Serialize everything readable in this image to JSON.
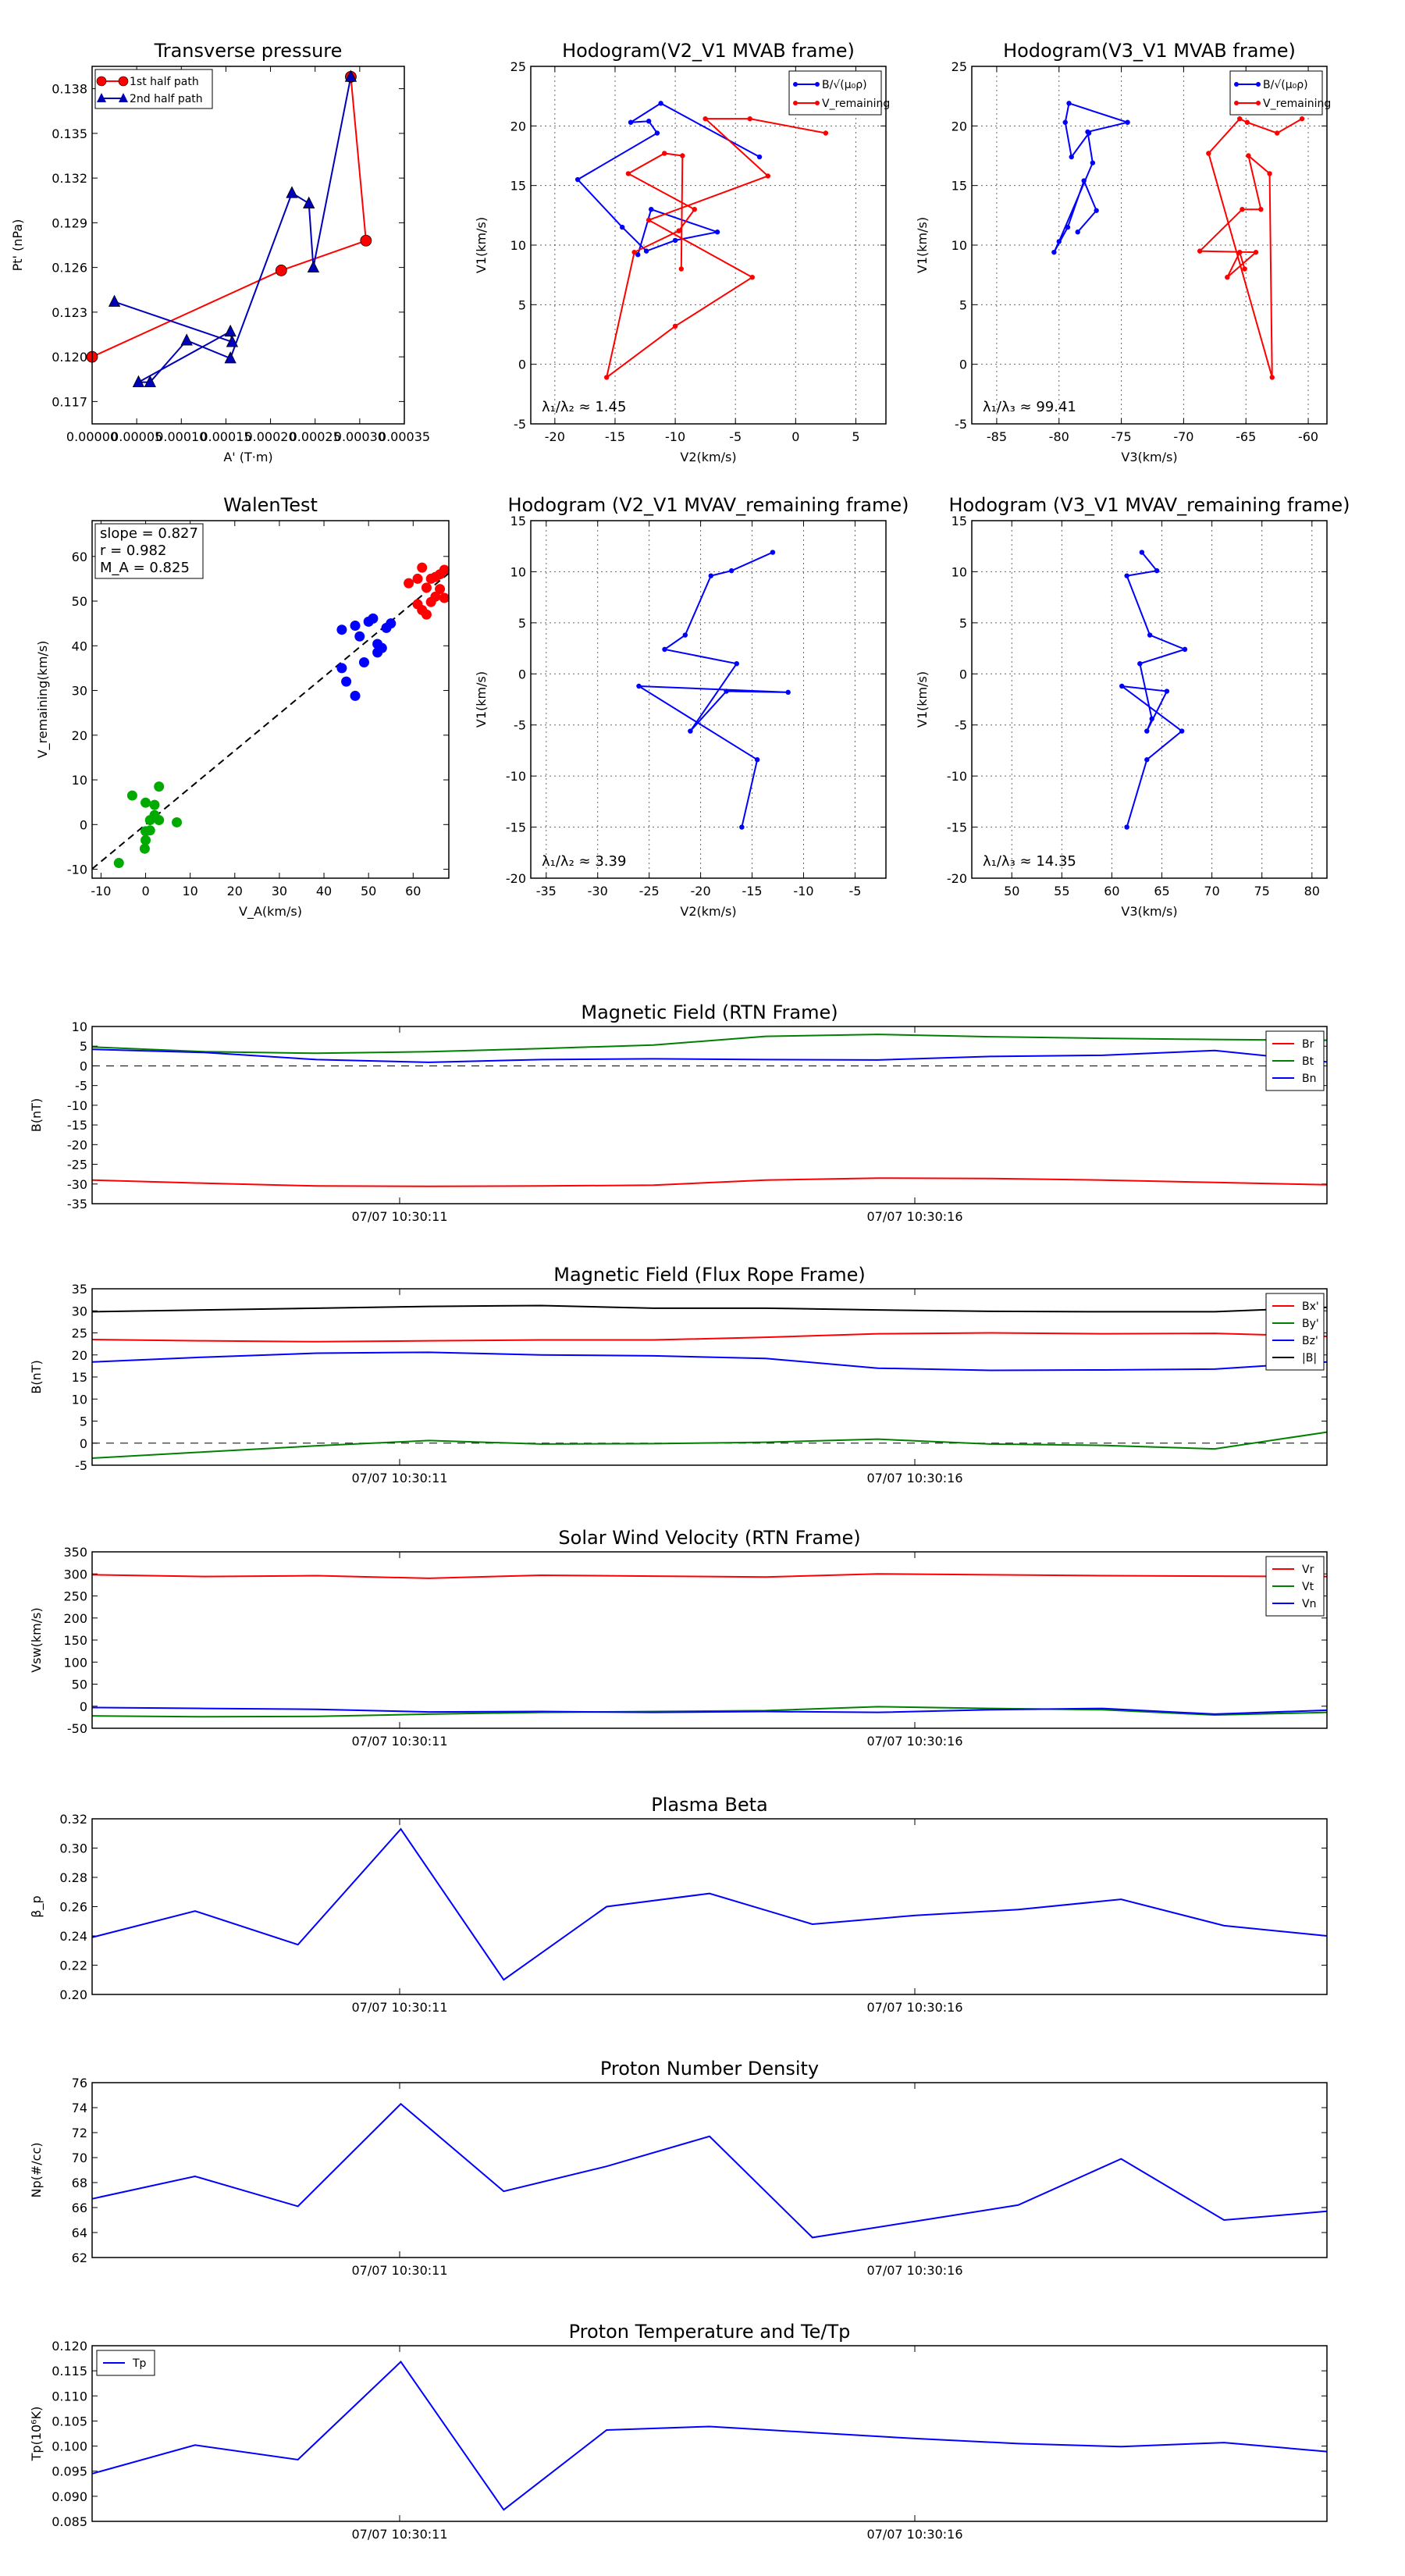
{
  "chart_data": [
    {
      "id": "pt",
      "type": "line",
      "title": "Transverse pressure",
      "xlabel": "A' (T·m)",
      "ylabel": "Pt' (nPa)",
      "xlim": [
        0,
        0.00035
      ],
      "ylim": [
        0.1155,
        0.1395
      ],
      "xticks": [
        0,
        5e-05,
        0.0001,
        0.00015,
        0.0002,
        0.00025,
        0.0003,
        0.00035
      ],
      "xticklabels": [
        "0.00000",
        "0.00005",
        "0.00010",
        "0.00015",
        "0.00020",
        "0.00025",
        "0.00030",
        "0.00035"
      ],
      "yticks": [
        0.117,
        0.12,
        0.123,
        0.126,
        0.129,
        0.132,
        0.135,
        0.138
      ],
      "yticklabels": [
        "0.117",
        "0.120",
        "0.123",
        "0.126",
        "0.129",
        "0.132",
        "0.135",
        "0.138"
      ],
      "legend_position": "top-left",
      "series": [
        {
          "name": "1st half path",
          "color": "#ff0000",
          "marker": "circle",
          "x": [
            0.0,
            0.000212,
            0.000307,
            0.00029
          ],
          "y": [
            0.12,
            0.1258,
            0.1278,
            0.1388
          ]
        },
        {
          "name": "2nd half path",
          "color": "#0000bb",
          "marker": "triangle",
          "x": [
            0.00029,
            0.000248,
            0.000243,
            0.000224,
            0.000155,
            0.000106,
            6.5e-05,
            5.2e-05,
            0.000155,
            0.000157,
            2.5e-05
          ],
          "y": [
            0.1388,
            0.126,
            0.1303,
            0.131,
            0.1199,
            0.1211,
            0.1183,
            0.1183,
            0.1217,
            0.121,
            0.1237
          ]
        }
      ]
    },
    {
      "id": "h1",
      "type": "line",
      "title": "Hodogram(V2_V1 MVAB frame)",
      "xlabel": "V2(km/s)",
      "ylabel": "V1(km/s)",
      "xlim": [
        -22,
        7.5
      ],
      "ylim": [
        -5,
        25
      ],
      "xticks": [
        -20,
        -15,
        -10,
        -5,
        0,
        5
      ],
      "yticks": [
        -5,
        0,
        5,
        10,
        15,
        20,
        25
      ],
      "legend_position": "top-right",
      "legend": [
        "B/√(μ₀ρ)",
        "V_remaining"
      ],
      "annotation": "λ₁/λ₂ ≈ 1.45",
      "series": [
        {
          "name": "B/√(μ₀ρ)",
          "color": "#0000ff",
          "x": [
            -3.0,
            -11.2,
            -13.7,
            -12.2,
            -11.5,
            -18.1,
            -14.4,
            -12.4,
            -10.0,
            -6.5,
            -12.0,
            -13.1
          ],
          "y": [
            17.4,
            21.9,
            20.3,
            20.4,
            19.4,
            15.5,
            11.5,
            9.5,
            10.4,
            11.1,
            13.0,
            9.2
          ]
        },
        {
          "name": "V_remaining",
          "color": "#ff0000",
          "x": [
            -9.5,
            -9.4,
            -10.9,
            -13.9,
            -8.4,
            -9.7,
            -13.4,
            -15.7,
            -10.0,
            -3.6,
            -12.2,
            -2.3,
            -7.5,
            -3.8,
            2.5
          ],
          "y": [
            8.0,
            17.5,
            17.7,
            16.0,
            13.0,
            11.2,
            9.4,
            -1.1,
            3.2,
            7.3,
            12.1,
            15.8,
            20.6,
            20.6,
            19.4
          ]
        }
      ]
    },
    {
      "id": "h2",
      "type": "line",
      "title": "Hodogram(V3_V1 MVAB frame)",
      "xlabel": "V3(km/s)",
      "ylabel": "V1(km/s)",
      "xlim": [
        -87,
        -58.5
      ],
      "ylim": [
        -5,
        25
      ],
      "xticks": [
        -85,
        -80,
        -75,
        -70,
        -65,
        -60
      ],
      "yticks": [
        -5,
        0,
        5,
        10,
        15,
        20,
        25
      ],
      "legend_position": "top-right",
      "legend": [
        "B/√(μ₀ρ)",
        "V_remaining"
      ],
      "annotation": "λ₁/λ₃ ≈ 99.41",
      "series": [
        {
          "name": "B/√(μ₀ρ)",
          "color": "#0000ff",
          "x": [
            -78.5,
            -77.0,
            -78.0,
            -79.3,
            -80.4,
            -80.0,
            -77.3,
            -77.7,
            -74.5,
            -79.2,
            -79.5,
            -79.0,
            -77.6
          ],
          "y": [
            11.1,
            12.9,
            15.4,
            11.5,
            9.4,
            10.3,
            16.9,
            19.5,
            20.3,
            21.9,
            20.3,
            17.4,
            19.4
          ]
        },
        {
          "name": "V_remaining",
          "color": "#ff0000",
          "x": [
            -65.1,
            -65.5,
            -66.5,
            -64.2,
            -68.7,
            -65.3,
            -63.8,
            -64.8,
            -63.1,
            -62.9,
            -68.0,
            -65.5,
            -64.9,
            -62.5,
            -60.5
          ],
          "y": [
            8.0,
            9.4,
            7.3,
            9.4,
            9.5,
            13.0,
            13.0,
            17.5,
            16.0,
            -1.1,
            17.7,
            20.6,
            20.3,
            19.4,
            20.6
          ]
        }
      ]
    },
    {
      "id": "walen",
      "type": "scatter",
      "title": "WalenTest",
      "xlabel": "V_A(km/s)",
      "ylabel": "V_remaining(km/s)",
      "xlim": [
        -12,
        68
      ],
      "ylim": [
        -12,
        68
      ],
      "xticks": [
        -10,
        0,
        10,
        20,
        30,
        40,
        50,
        60
      ],
      "yticks": [
        -10,
        0,
        10,
        20,
        30,
        40,
        50,
        60
      ],
      "annotation_lines": [
        "slope = 0.827",
        "r = 0.982",
        "M_A = 0.825"
      ],
      "fit_slope": 0.827,
      "series": [
        {
          "name": "green",
          "color": "#00aa00",
          "x": [
            -3,
            3,
            7,
            0,
            2,
            1,
            1,
            2,
            0,
            -0.2,
            -6,
            0,
            3
          ],
          "y": [
            6.5,
            8.5,
            0.5,
            4.9,
            2.1,
            1.0,
            -1.3,
            4.4,
            -1.5,
            -5.4,
            -8.6,
            -3.5,
            1.0
          ]
        },
        {
          "name": "blue",
          "color": "#0000ff",
          "x": [
            44,
            47,
            48,
            50,
            51,
            52,
            53,
            54,
            55,
            44,
            45,
            47,
            49,
            52
          ],
          "y": [
            43.6,
            44.5,
            42.1,
            45.4,
            46.1,
            38.5,
            39.5,
            44.0,
            45.0,
            35.0,
            32.0,
            28.8,
            36.3,
            40.4
          ]
        },
        {
          "name": "red",
          "color": "#ff0000",
          "x": [
            59,
            61,
            62,
            63,
            64,
            65,
            66,
            67,
            62,
            63,
            64,
            65,
            66,
            67,
            61
          ],
          "y": [
            54.0,
            55.0,
            57.5,
            53.0,
            55.0,
            55.4,
            56.0,
            57.0,
            48.0,
            47.0,
            49.8,
            51.0,
            52.7,
            50.7,
            49.3
          ]
        }
      ]
    },
    {
      "id": "h3",
      "type": "line",
      "title": "Hodogram (V2_V1 MVAV_remaining frame)",
      "xlabel": "V2(km/s)",
      "ylabel": "V1(km/s)",
      "xlim": [
        -36.5,
        -2
      ],
      "ylim": [
        -20,
        15
      ],
      "xticks": [
        -35,
        -30,
        -25,
        -20,
        -15,
        -10,
        -5
      ],
      "yticks": [
        -20,
        -15,
        -10,
        -5,
        0,
        5,
        10,
        15
      ],
      "annotation": "λ₁/λ₂ ≈ 3.39",
      "series": [
        {
          "name": "B",
          "color": "#0000ff",
          "x": [
            -13.0,
            -17.0,
            -19.0,
            -21.5,
            -23.5,
            -16.5,
            -21.0,
            -17.5,
            -11.5,
            -26.0,
            -14.5,
            -16.0
          ],
          "y": [
            11.9,
            10.1,
            9.6,
            3.8,
            2.4,
            1.0,
            -5.6,
            -1.7,
            -1.8,
            -1.2,
            -8.4,
            -15.0
          ]
        }
      ]
    },
    {
      "id": "h4",
      "type": "line",
      "title": "Hodogram (V3_V1 MVAV_remaining frame)",
      "xlabel": "V3(km/s)",
      "ylabel": "V1(km/s)",
      "xlim": [
        46,
        81.5
      ],
      "ylim": [
        -20,
        15
      ],
      "xticks": [
        50,
        55,
        60,
        65,
        70,
        75,
        80
      ],
      "yticks": [
        -20,
        -15,
        -10,
        -5,
        0,
        5,
        10,
        15
      ],
      "annotation": "λ₁/λ₃ ≈ 14.35",
      "series": [
        {
          "name": "B",
          "color": "#0000ff",
          "x": [
            63.0,
            64.5,
            61.5,
            63.8,
            67.3,
            62.8,
            64.0,
            63.5,
            65.5,
            61.0,
            67.0,
            63.5,
            61.5
          ],
          "y": [
            11.9,
            10.1,
            9.6,
            3.8,
            2.4,
            1.0,
            -4.4,
            -5.6,
            -1.7,
            -1.2,
            -5.6,
            -8.4,
            -15.0
          ]
        }
      ]
    },
    {
      "id": "mag_rtn",
      "type": "line",
      "title": "Magnetic Field (RTN Frame)",
      "ylabel": "B(nT)",
      "ylim": [
        -35,
        10
      ],
      "yticks": [
        -35,
        -30,
        -25,
        -20,
        -15,
        -10,
        -5,
        0,
        5,
        10
      ],
      "zero_line": true,
      "xticklabels": [
        "07/07 10:30:11",
        "07/07 10:30:16"
      ],
      "legend_position": "top-right",
      "series": [
        {
          "name": "Br",
          "color": "#ff0000",
          "values": [
            -29.0,
            -29.8,
            -30.5,
            -30.6,
            -30.5,
            -30.3,
            -29.0,
            -28.5,
            -28.6,
            -29.0,
            -29.6,
            -30.2
          ]
        },
        {
          "name": "Bt",
          "color": "#008000",
          "values": [
            4.8,
            3.6,
            3.2,
            3.6,
            4.4,
            5.3,
            7.5,
            8.0,
            7.4,
            7.0,
            6.7,
            6.5
          ]
        },
        {
          "name": "Bn",
          "color": "#0000ff",
          "values": [
            4.2,
            3.4,
            1.6,
            0.9,
            1.6,
            1.8,
            1.6,
            1.5,
            2.4,
            2.7,
            3.9,
            1.0
          ]
        }
      ]
    },
    {
      "id": "mag_fr",
      "type": "line",
      "title": "Magnetic Field (Flux Rope Frame)",
      "ylabel": "B(nT)",
      "ylim": [
        -5,
        35
      ],
      "yticks": [
        -5,
        0,
        5,
        10,
        15,
        20,
        25,
        30,
        35
      ],
      "zero_line": true,
      "xticklabels": [
        "07/07 10:30:11",
        "07/07 10:30:16"
      ],
      "legend_position": "top-right",
      "series": [
        {
          "name": "Bx'",
          "color": "#ff0000",
          "values": [
            23.5,
            23.2,
            23.0,
            23.2,
            23.4,
            23.4,
            24.0,
            24.8,
            25.0,
            24.8,
            24.9,
            24.2
          ]
        },
        {
          "name": "By'",
          "color": "#008000",
          "values": [
            -3.4,
            -2.0,
            -0.6,
            0.6,
            -0.2,
            -0.1,
            0.2,
            0.9,
            -0.2,
            -0.5,
            -1.3,
            2.5
          ]
        },
        {
          "name": "Bz'",
          "color": "#0000ff",
          "values": [
            18.4,
            19.5,
            20.4,
            20.6,
            20.0,
            19.8,
            19.2,
            17.0,
            16.5,
            16.6,
            16.8,
            18.4
          ]
        },
        {
          "name": "|B|",
          "color": "#000000",
          "values": [
            29.8,
            30.2,
            30.6,
            31.0,
            31.2,
            30.6,
            30.6,
            30.2,
            29.9,
            29.8,
            29.8,
            30.8
          ]
        }
      ]
    },
    {
      "id": "vsw",
      "type": "line",
      "title": "Solar Wind Velocity (RTN Frame)",
      "ylabel": "Vsw(km/s)",
      "ylim": [
        -50,
        350
      ],
      "yticks": [
        -50,
        0,
        50,
        100,
        150,
        200,
        250,
        300,
        350
      ],
      "xticklabels": [
        "07/07 10:30:11",
        "07/07 10:30:16"
      ],
      "legend_position": "top-right",
      "series": [
        {
          "name": "Vr",
          "color": "#ff0000",
          "values": [
            298,
            294,
            296,
            290,
            297,
            295,
            293,
            300,
            298,
            296,
            295,
            294
          ]
        },
        {
          "name": "Vt",
          "color": "#008000",
          "values": [
            -22,
            -24,
            -23,
            -18,
            -14,
            -12,
            -10,
            -1,
            -5,
            -8,
            -20,
            -14
          ]
        },
        {
          "name": "Vn",
          "color": "#0000ff",
          "values": [
            -3,
            -5,
            -7,
            -13,
            -12,
            -14,
            -12,
            -14,
            -8,
            -5,
            -18,
            -9
          ]
        }
      ]
    },
    {
      "id": "beta",
      "type": "line",
      "title": "Plasma Beta",
      "ylabel": "β_p",
      "ylim": [
        0.2,
        0.32
      ],
      "yticks": [
        0.2,
        0.22,
        0.24,
        0.26,
        0.28,
        0.3,
        0.32
      ],
      "yticklabels": [
        "0.20",
        "0.22",
        "0.24",
        "0.26",
        "0.28",
        "0.30",
        "0.32"
      ],
      "xticklabels": [
        "07/07 10:30:11",
        "07/07 10:30:16"
      ],
      "series": [
        {
          "name": "beta",
          "color": "#0000ff",
          "values": [
            0.239,
            0.257,
            0.234,
            0.313,
            0.21,
            0.26,
            0.269,
            0.248,
            0.254,
            0.258,
            0.265,
            0.247,
            0.24
          ]
        }
      ]
    },
    {
      "id": "np",
      "type": "line",
      "title": "Proton Number Density",
      "ylabel": "Np(#/cc)",
      "ylim": [
        62,
        76
      ],
      "yticks": [
        62,
        64,
        66,
        68,
        70,
        72,
        74,
        76
      ],
      "xticklabels": [
        "07/07 10:30:11",
        "07/07 10:30:16"
      ],
      "series": [
        {
          "name": "Np",
          "color": "#0000ff",
          "values": [
            66.7,
            68.5,
            66.1,
            74.3,
            67.3,
            69.3,
            71.7,
            63.6,
            64.9,
            66.2,
            69.9,
            65.0,
            65.7
          ]
        }
      ]
    },
    {
      "id": "tp",
      "type": "line",
      "title": "Proton Temperature and Te/Tp",
      "ylabel": "Tp(10⁶K)",
      "ylim": [
        0.085,
        0.12
      ],
      "yticks": [
        0.085,
        0.09,
        0.095,
        0.1,
        0.105,
        0.11,
        0.115,
        0.12
      ],
      "yticklabels": [
        "0.085",
        "0.090",
        "0.095",
        "0.100",
        "0.105",
        "0.110",
        "0.115",
        "0.120"
      ],
      "xticklabels": [
        "07/07 10:30:11",
        "07/07 10:30:16"
      ],
      "legend_position": "top-left",
      "series": [
        {
          "name": "Tp",
          "color": "#0000ff",
          "values": [
            0.0945,
            0.1002,
            0.0973,
            0.1168,
            0.0873,
            0.1032,
            0.1039,
            0.1027,
            0.1015,
            0.1005,
            0.0999,
            0.1007,
            0.0989
          ]
        }
      ]
    }
  ]
}
